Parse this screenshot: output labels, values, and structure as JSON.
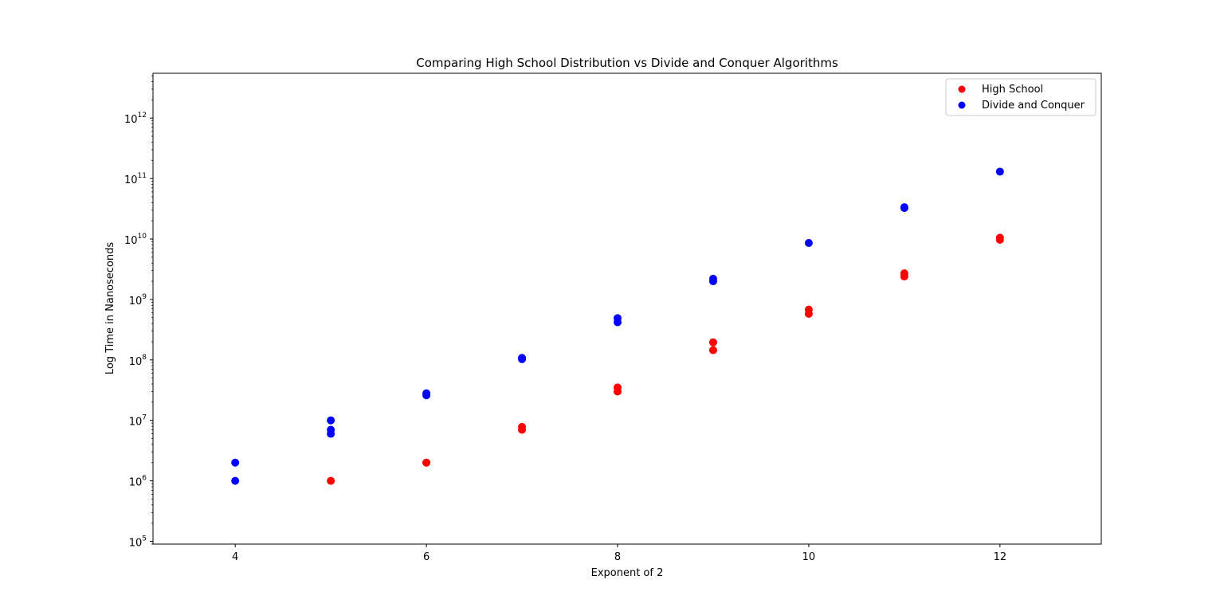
{
  "chart_data": {
    "type": "scatter",
    "title": "Comparing High School Distribution vs Divide and Conquer Algorithms",
    "xlabel": "Exponent of 2",
    "ylabel": "Log Time in Nanoseconds",
    "yscale": "log",
    "xlim": [
      3.14,
      13.06
    ],
    "ylim": [
      90000,
      5500000000000.0
    ],
    "x_ticks": [
      4,
      6,
      8,
      10,
      12
    ],
    "y_ticks": [
      {
        "value": 100000.0,
        "base": "10",
        "exp": "5"
      },
      {
        "value": 1000000.0,
        "base": "10",
        "exp": "6"
      },
      {
        "value": 10000000.0,
        "base": "10",
        "exp": "7"
      },
      {
        "value": 100000000.0,
        "base": "10",
        "exp": "8"
      },
      {
        "value": 1000000000.0,
        "base": "10",
        "exp": "9"
      },
      {
        "value": 10000000000.0,
        "base": "10",
        "exp": "10"
      },
      {
        "value": 100000000000.0,
        "base": "10",
        "exp": "11"
      },
      {
        "value": 1000000000000.0,
        "base": "10",
        "exp": "12"
      }
    ],
    "grid": false,
    "legend_position": "top-right",
    "series": [
      {
        "name": "High School",
        "color": "#ff0000",
        "points": [
          {
            "x": 5,
            "y": 1000000
          },
          {
            "x": 6,
            "y": 2000000
          },
          {
            "x": 6,
            "y": 2000000
          },
          {
            "x": 7,
            "y": 7000000
          },
          {
            "x": 7,
            "y": 7800000
          },
          {
            "x": 8,
            "y": 30000000
          },
          {
            "x": 8,
            "y": 35000000
          },
          {
            "x": 9,
            "y": 145000000
          },
          {
            "x": 9,
            "y": 195000000
          },
          {
            "x": 10,
            "y": 580000000
          },
          {
            "x": 10,
            "y": 680000000
          },
          {
            "x": 11,
            "y": 2400000000
          },
          {
            "x": 11,
            "y": 2700000000
          },
          {
            "x": 12,
            "y": 9700000000
          },
          {
            "x": 12,
            "y": 10500000000
          }
        ]
      },
      {
        "name": "Divide and Conquer",
        "color": "#0000ff",
        "points": [
          {
            "x": 4,
            "y": 1000000
          },
          {
            "x": 4,
            "y": 2000000
          },
          {
            "x": 5,
            "y": 6000000
          },
          {
            "x": 5,
            "y": 7000000
          },
          {
            "x": 5,
            "y": 10000000
          },
          {
            "x": 6,
            "y": 26000000
          },
          {
            "x": 6,
            "y": 28000000
          },
          {
            "x": 7,
            "y": 103000000
          },
          {
            "x": 7,
            "y": 108000000
          },
          {
            "x": 8,
            "y": 420000000
          },
          {
            "x": 8,
            "y": 490000000
          },
          {
            "x": 9,
            "y": 2000000000
          },
          {
            "x": 9,
            "y": 2200000000
          },
          {
            "x": 10,
            "y": 8600000000
          },
          {
            "x": 11,
            "y": 32500000000
          },
          {
            "x": 11,
            "y": 33500000000
          },
          {
            "x": 12,
            "y": 130000000000
          }
        ]
      }
    ]
  }
}
